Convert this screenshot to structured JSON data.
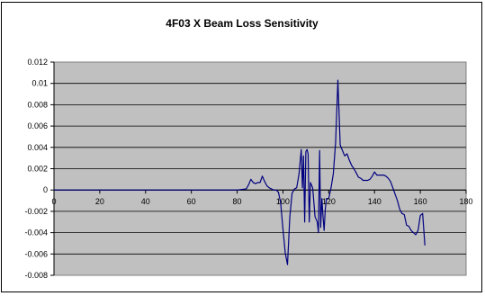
{
  "chart_data": {
    "type": "line",
    "title": "4F03 X Beam Loss Sensitivity",
    "xlabel": "",
    "ylabel": "",
    "xlim": [
      0,
      180
    ],
    "ylim": [
      -0.008,
      0.012
    ],
    "x_ticks": [
      0,
      20,
      40,
      60,
      80,
      100,
      120,
      140,
      160,
      180
    ],
    "x_tick_labels": [
      "0",
      "20",
      "40",
      "60",
      "80",
      "100",
      "120",
      "140",
      "160",
      "180"
    ],
    "y_ticks": [
      -0.008,
      -0.006,
      -0.004,
      -0.002,
      0,
      0.002,
      0.004,
      0.006,
      0.008,
      0.01,
      0.012
    ],
    "y_tick_labels": [
      "-0.008",
      "-0.006",
      "-0.004",
      "-0.002",
      "0",
      "0.002",
      "0.004",
      "0.006",
      "0.008",
      "0.01",
      "0.012"
    ],
    "grid": "horizontal",
    "plot_background": "#c0c0c0",
    "series": [
      {
        "color": "#000080",
        "x": [
          0,
          20,
          40,
          60,
          80,
          84,
          85,
          86,
          87,
          88,
          89,
          90,
          91,
          92,
          93,
          94,
          95,
          96,
          97,
          98,
          99,
          100,
          101,
          102,
          103,
          104,
          105,
          106,
          107,
          108,
          108.5,
          109,
          109.5,
          110,
          110.5,
          111,
          111.5,
          112,
          113,
          114,
          115,
          115.5,
          116,
          116.5,
          117,
          117.5,
          118,
          118.5,
          119,
          120,
          121,
          122,
          123,
          124,
          125,
          126,
          127,
          128,
          129,
          130,
          131,
          132,
          133,
          134,
          135,
          136,
          137,
          138,
          139,
          140,
          141,
          142,
          143,
          144,
          145,
          146,
          147,
          148,
          149,
          150,
          151,
          152,
          153,
          154,
          155,
          156,
          157,
          158,
          159,
          160,
          161,
          162
        ],
        "y": [
          0,
          0,
          0,
          0,
          0,
          0.0001,
          0.0005,
          0.001,
          0.0007,
          0.0006,
          0.0007,
          0.0007,
          0.0013,
          0.0008,
          0.0004,
          0.0002,
          0.0001,
          0,
          0,
          -0.0002,
          -0.0012,
          -0.0036,
          -0.0059,
          -0.007,
          -0.0025,
          -0.0003,
          0.0001,
          0.0002,
          0.0015,
          0.0038,
          0.0002,
          0.0032,
          -0.003,
          0.0036,
          0.0038,
          0.0034,
          -0.003,
          0.0007,
          0.0002,
          -0.0025,
          -0.003,
          -0.004,
          0.0037,
          -0.0035,
          -0.0008,
          -0.0025,
          -0.0038,
          -0.0018,
          -0.0008,
          -0.0008,
          0.0002,
          0.0015,
          0.0045,
          0.0103,
          0.0042,
          0.0037,
          0.0032,
          0.0034,
          0.0028,
          0.0023,
          0.002,
          0.0016,
          0.0012,
          0.0011,
          0.0009,
          0.0009,
          0.0009,
          0.001,
          0.0013,
          0.0017,
          0.0014,
          0.0014,
          0.0014,
          0.0014,
          0.0013,
          0.0011,
          0.0008,
          0.0002,
          -0.0004,
          -0.001,
          -0.0018,
          -0.0022,
          -0.0023,
          -0.0033,
          -0.0034,
          -0.0038,
          -0.004,
          -0.0042,
          -0.0038,
          -0.0024,
          -0.0022,
          -0.0052
        ]
      }
    ]
  }
}
